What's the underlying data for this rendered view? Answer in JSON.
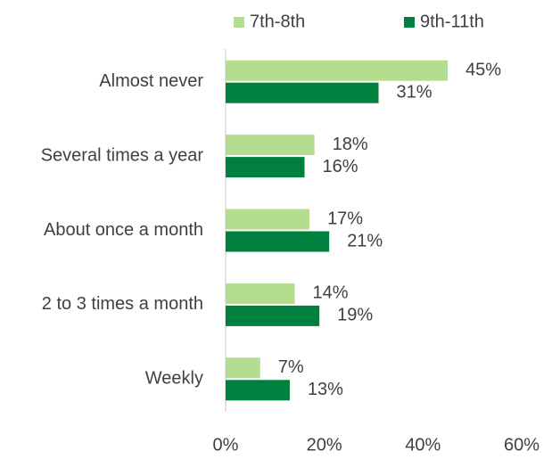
{
  "chart_data": {
    "type": "bar",
    "orientation": "horizontal",
    "categories": [
      "Almost never",
      "Several times a year",
      "About once a month",
      "2 to 3 times a month",
      "Weekly"
    ],
    "series": [
      {
        "name": "7th-8th",
        "color": "#b5dd8f",
        "values": [
          45,
          18,
          17,
          14,
          7
        ],
        "value_labels": [
          "45%",
          "18%",
          "17%",
          "14%",
          "7%"
        ]
      },
      {
        "name": "9th-11th",
        "color": "#00803e",
        "values": [
          31,
          16,
          21,
          19,
          13
        ],
        "value_labels": [
          "31%",
          "16%",
          "21%",
          "19%",
          "13%"
        ]
      }
    ],
    "xlim": [
      0,
      60
    ],
    "xticks": [
      {
        "value": 0,
        "label": "0%"
      },
      {
        "value": 20,
        "label": "20%"
      },
      {
        "value": 40,
        "label": "40%"
      },
      {
        "value": 60,
        "label": "60%"
      }
    ],
    "legend": "top",
    "grid": false
  }
}
